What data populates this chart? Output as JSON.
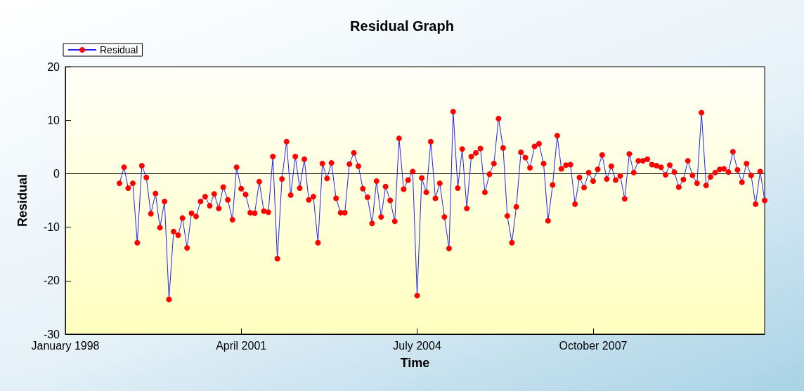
{
  "chart_data": {
    "type": "line",
    "title": "Residual Graph",
    "xlabel": "Time",
    "ylabel": "Residual",
    "x": [
      "1999-01",
      "1999-02",
      "1999-03",
      "1999-04",
      "1999-05",
      "1999-06",
      "1999-07",
      "1999-08",
      "1999-09",
      "1999-10",
      "1999-11",
      "1999-12",
      "2000-01",
      "2000-02",
      "2000-03",
      "2000-04",
      "2000-05",
      "2000-06",
      "2000-07",
      "2000-08",
      "2000-09",
      "2000-10",
      "2000-11",
      "2000-12",
      "2001-01",
      "2001-02",
      "2001-03",
      "2001-04",
      "2001-05",
      "2001-06",
      "2001-07",
      "2001-08",
      "2001-09",
      "2001-10",
      "2001-11",
      "2001-12",
      "2002-01",
      "2002-02",
      "2002-03",
      "2002-04",
      "2002-05",
      "2002-06",
      "2002-07",
      "2002-08",
      "2002-09",
      "2002-10",
      "2002-11",
      "2002-12",
      "2003-01",
      "2003-02",
      "2003-03",
      "2003-04",
      "2003-05",
      "2003-06",
      "2003-07",
      "2003-08",
      "2003-09",
      "2003-10",
      "2003-11",
      "2003-12",
      "2004-01",
      "2004-02",
      "2004-03",
      "2004-04",
      "2004-05",
      "2004-06",
      "2004-07",
      "2004-08",
      "2004-09",
      "2004-10",
      "2004-11",
      "2004-12",
      "2005-01",
      "2005-02",
      "2005-03",
      "2005-04",
      "2005-05",
      "2005-06",
      "2005-07",
      "2005-08",
      "2005-09",
      "2005-10",
      "2005-11",
      "2005-12",
      "2006-01",
      "2006-02",
      "2006-03",
      "2006-04",
      "2006-05",
      "2006-06",
      "2006-07",
      "2006-08",
      "2006-09",
      "2006-10",
      "2006-11",
      "2006-12",
      "2007-01",
      "2007-02",
      "2007-03",
      "2007-04",
      "2007-05",
      "2007-06",
      "2007-07",
      "2007-08",
      "2007-09",
      "2007-10",
      "2007-11",
      "2007-12",
      "2008-01",
      "2008-02",
      "2008-03",
      "2008-04",
      "2008-05",
      "2008-06",
      "2008-07",
      "2008-08",
      "2008-09",
      "2008-10",
      "2008-11",
      "2008-12",
      "2009-01",
      "2009-02",
      "2009-03",
      "2009-04",
      "2009-05",
      "2009-06",
      "2009-07",
      "2009-08",
      "2009-09",
      "2009-10",
      "2009-11",
      "2009-12",
      "2010-01",
      "2010-02",
      "2010-03",
      "2010-04",
      "2010-05",
      "2010-06",
      "2010-07",
      "2010-08",
      "2010-09",
      "2010-10",
      "2010-11",
      "2010-12"
    ],
    "series": [
      {
        "name": "Residual",
        "color": "#ff0000",
        "values": [
          -1.8,
          1.2,
          -2.7,
          -1.8,
          -12.9,
          1.5,
          -0.7,
          -7.5,
          -3.7,
          -10.1,
          -5.2,
          -23.5,
          -10.8,
          -11.5,
          -8.3,
          -13.9,
          -7.4,
          -8.0,
          -5.2,
          -4.3,
          -6.0,
          -3.8,
          -6.5,
          -2.5,
          -4.9,
          -8.6,
          1.2,
          -2.8,
          -3.9,
          -7.3,
          -7.4,
          -1.5,
          -7.0,
          -7.2,
          3.2,
          -15.9,
          -1.0,
          6.0,
          -4.0,
          3.2,
          -2.7,
          2.7,
          -4.9,
          -4.3,
          -12.9,
          1.9,
          -0.9,
          2.0,
          -4.6,
          -7.3,
          -7.3,
          1.8,
          3.9,
          1.4,
          -2.8,
          -4.4,
          -9.3,
          -1.4,
          -8.1,
          -2.4,
          -5.0,
          -8.9,
          6.6,
          -2.9,
          -1.2,
          0.4,
          -22.8,
          -0.8,
          -3.5,
          6.0,
          -4.6,
          -1.8,
          -8.1,
          -14.0,
          11.6,
          -2.7,
          4.6,
          -6.5,
          3.2,
          3.9,
          4.7,
          -3.5,
          -0.1,
          1.9,
          10.3,
          4.8,
          -7.9,
          -12.9,
          -6.2,
          4.0,
          3.0,
          1.1,
          5.1,
          5.6,
          1.9,
          -8.8,
          -2.1,
          7.1,
          0.9,
          1.6,
          1.7,
          -5.7,
          -0.7,
          -2.6,
          0.2,
          -1.4,
          0.8,
          3.5,
          -1.0,
          1.4,
          -1.2,
          -0.4,
          -4.7,
          3.7,
          0.2,
          2.4,
          2.4,
          2.7,
          1.7,
          1.5,
          1.2,
          -0.2,
          1.6,
          0.3,
          -2.5,
          -1.1,
          2.4,
          -0.3,
          -1.8,
          11.4,
          -2.2,
          -0.6,
          0.2,
          0.8,
          0.9,
          0.3,
          4.1,
          0.7,
          -1.6,
          1.9,
          -0.3,
          -5.7,
          0.4,
          -5.0
        ]
      }
    ],
    "xlim": [
      "1998-01",
      "2010-12"
    ],
    "xticks": [
      {
        "value": "1998-01",
        "label": "January 1998"
      },
      {
        "value": "2001-04",
        "label": "April 2001"
      },
      {
        "value": "2004-07",
        "label": "July 2004"
      },
      {
        "value": "2007-10",
        "label": "October 2007"
      }
    ],
    "ylim": [
      -30,
      20
    ],
    "yticks": [
      -30,
      -20,
      -10,
      0,
      10,
      20
    ],
    "ref_lines": [
      {
        "axis": "y",
        "value": 0,
        "color": "#000000"
      }
    ],
    "marker": "circle",
    "line_style": "solid",
    "legend": "top left",
    "grid": false
  }
}
